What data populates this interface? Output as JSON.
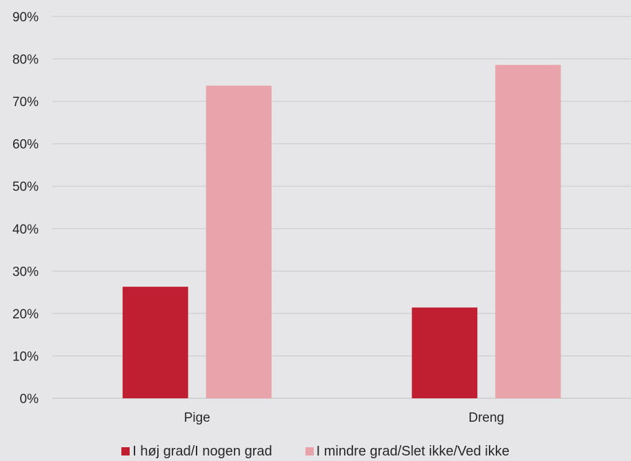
{
  "chart_data": {
    "type": "bar",
    "title": "",
    "xlabel": "",
    "ylabel": "",
    "categories": [
      "Pige",
      "Dreng"
    ],
    "series": [
      {
        "name": "I høj grad/I nogen grad",
        "values": [
          26.3,
          21.4
        ],
        "color": "#c01f31"
      },
      {
        "name": "I mindre grad/Slet ikke/Ved ikke",
        "values": [
          73.7,
          78.6
        ],
        "color": "#e8a4aa"
      }
    ],
    "ylim": [
      0,
      90
    ],
    "yticks": [
      "0%",
      "10%",
      "20%",
      "30%",
      "40%",
      "50%",
      "60%",
      "70%",
      "80%",
      "90%"
    ],
    "grid": true,
    "legend_position": "bottom"
  }
}
